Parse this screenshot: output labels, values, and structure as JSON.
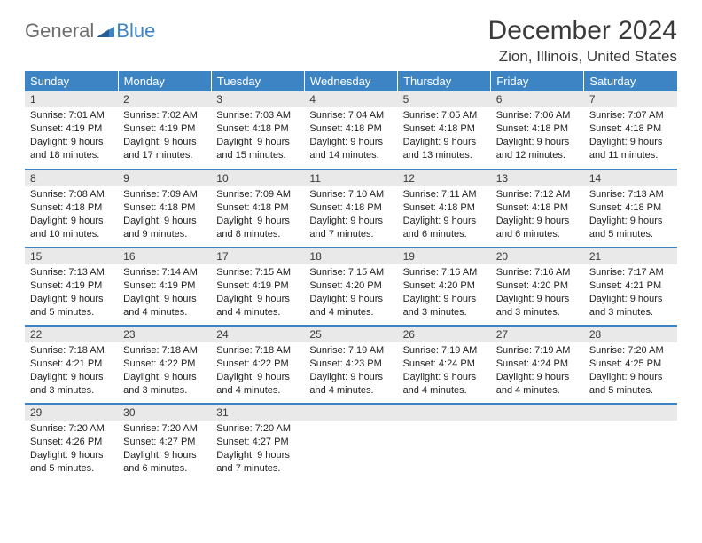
{
  "logo": {
    "text1": "General",
    "text2": "Blue",
    "color_gray": "#6d6d6d",
    "color_blue": "#3d84c5"
  },
  "title": "December 2024",
  "location": "Zion, Illinois, United States",
  "header_bg": "#3d84c5",
  "header_text_color": "#ffffff",
  "daynum_bg": "#e9e9e9",
  "row_border_color": "#3d84c5",
  "columns": [
    "Sunday",
    "Monday",
    "Tuesday",
    "Wednesday",
    "Thursday",
    "Friday",
    "Saturday"
  ],
  "weeks": [
    [
      {
        "n": "1",
        "sr": "7:01 AM",
        "ss": "4:19 PM",
        "dl": "9 hours and 18 minutes."
      },
      {
        "n": "2",
        "sr": "7:02 AM",
        "ss": "4:19 PM",
        "dl": "9 hours and 17 minutes."
      },
      {
        "n": "3",
        "sr": "7:03 AM",
        "ss": "4:18 PM",
        "dl": "9 hours and 15 minutes."
      },
      {
        "n": "4",
        "sr": "7:04 AM",
        "ss": "4:18 PM",
        "dl": "9 hours and 14 minutes."
      },
      {
        "n": "5",
        "sr": "7:05 AM",
        "ss": "4:18 PM",
        "dl": "9 hours and 13 minutes."
      },
      {
        "n": "6",
        "sr": "7:06 AM",
        "ss": "4:18 PM",
        "dl": "9 hours and 12 minutes."
      },
      {
        "n": "7",
        "sr": "7:07 AM",
        "ss": "4:18 PM",
        "dl": "9 hours and 11 minutes."
      }
    ],
    [
      {
        "n": "8",
        "sr": "7:08 AM",
        "ss": "4:18 PM",
        "dl": "9 hours and 10 minutes."
      },
      {
        "n": "9",
        "sr": "7:09 AM",
        "ss": "4:18 PM",
        "dl": "9 hours and 9 minutes."
      },
      {
        "n": "10",
        "sr": "7:09 AM",
        "ss": "4:18 PM",
        "dl": "9 hours and 8 minutes."
      },
      {
        "n": "11",
        "sr": "7:10 AM",
        "ss": "4:18 PM",
        "dl": "9 hours and 7 minutes."
      },
      {
        "n": "12",
        "sr": "7:11 AM",
        "ss": "4:18 PM",
        "dl": "9 hours and 6 minutes."
      },
      {
        "n": "13",
        "sr": "7:12 AM",
        "ss": "4:18 PM",
        "dl": "9 hours and 6 minutes."
      },
      {
        "n": "14",
        "sr": "7:13 AM",
        "ss": "4:18 PM",
        "dl": "9 hours and 5 minutes."
      }
    ],
    [
      {
        "n": "15",
        "sr": "7:13 AM",
        "ss": "4:19 PM",
        "dl": "9 hours and 5 minutes."
      },
      {
        "n": "16",
        "sr": "7:14 AM",
        "ss": "4:19 PM",
        "dl": "9 hours and 4 minutes."
      },
      {
        "n": "17",
        "sr": "7:15 AM",
        "ss": "4:19 PM",
        "dl": "9 hours and 4 minutes."
      },
      {
        "n": "18",
        "sr": "7:15 AM",
        "ss": "4:20 PM",
        "dl": "9 hours and 4 minutes."
      },
      {
        "n": "19",
        "sr": "7:16 AM",
        "ss": "4:20 PM",
        "dl": "9 hours and 3 minutes."
      },
      {
        "n": "20",
        "sr": "7:16 AM",
        "ss": "4:20 PM",
        "dl": "9 hours and 3 minutes."
      },
      {
        "n": "21",
        "sr": "7:17 AM",
        "ss": "4:21 PM",
        "dl": "9 hours and 3 minutes."
      }
    ],
    [
      {
        "n": "22",
        "sr": "7:18 AM",
        "ss": "4:21 PM",
        "dl": "9 hours and 3 minutes."
      },
      {
        "n": "23",
        "sr": "7:18 AM",
        "ss": "4:22 PM",
        "dl": "9 hours and 3 minutes."
      },
      {
        "n": "24",
        "sr": "7:18 AM",
        "ss": "4:22 PM",
        "dl": "9 hours and 4 minutes."
      },
      {
        "n": "25",
        "sr": "7:19 AM",
        "ss": "4:23 PM",
        "dl": "9 hours and 4 minutes."
      },
      {
        "n": "26",
        "sr": "7:19 AM",
        "ss": "4:24 PM",
        "dl": "9 hours and 4 minutes."
      },
      {
        "n": "27",
        "sr": "7:19 AM",
        "ss": "4:24 PM",
        "dl": "9 hours and 4 minutes."
      },
      {
        "n": "28",
        "sr": "7:20 AM",
        "ss": "4:25 PM",
        "dl": "9 hours and 5 minutes."
      }
    ],
    [
      {
        "n": "29",
        "sr": "7:20 AM",
        "ss": "4:26 PM",
        "dl": "9 hours and 5 minutes."
      },
      {
        "n": "30",
        "sr": "7:20 AM",
        "ss": "4:27 PM",
        "dl": "9 hours and 6 minutes."
      },
      {
        "n": "31",
        "sr": "7:20 AM",
        "ss": "4:27 PM",
        "dl": "9 hours and 7 minutes."
      },
      null,
      null,
      null,
      null
    ]
  ],
  "labels": {
    "sunrise": "Sunrise:",
    "sunset": "Sunset:",
    "daylight": "Daylight:"
  }
}
